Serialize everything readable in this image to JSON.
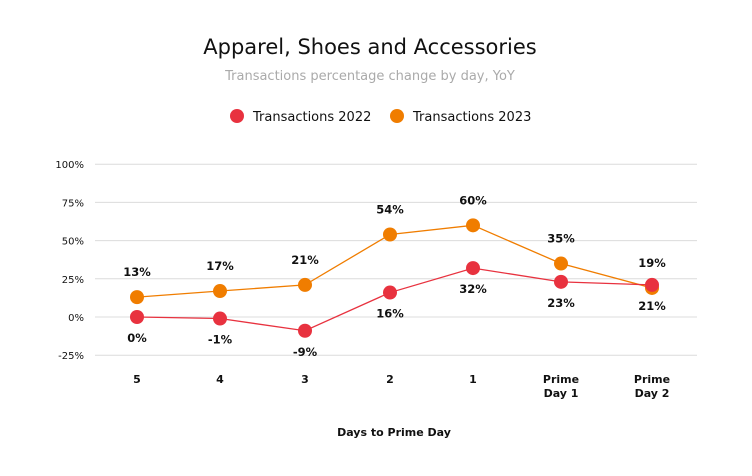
{
  "chart_data": {
    "type": "line",
    "title": "Apparel, Shoes and Accessories",
    "subtitle": "Transactions percentage change by day, YoY",
    "xlabel": "Days to Prime Day",
    "ylabel": "",
    "categories": [
      "5",
      "4",
      "3",
      "2",
      "1",
      "Prime Day 1",
      "Prime Day 2"
    ],
    "ylim": [
      -25,
      100
    ],
    "yticks": [
      "100%",
      "75%",
      "50%",
      "25%",
      "0%",
      "-25%"
    ],
    "ytick_values": [
      100,
      75,
      50,
      25,
      0,
      -25
    ],
    "grid": true,
    "legend_position": "top",
    "series": [
      {
        "name": "Transactions 2022",
        "color": "#e8323f",
        "values": [
          0,
          -1,
          -9,
          16,
          32,
          23,
          21
        ],
        "labels": [
          "0%",
          "-1%",
          "-9%",
          "16%",
          "32%",
          "23%",
          "21%"
        ]
      },
      {
        "name": "Transactions 2023",
        "color": "#f07d00",
        "values": [
          13,
          17,
          21,
          54,
          60,
          35,
          19
        ],
        "labels": [
          "13%",
          "17%",
          "21%",
          "54%",
          "60%",
          "35%",
          "19%"
        ]
      }
    ]
  }
}
